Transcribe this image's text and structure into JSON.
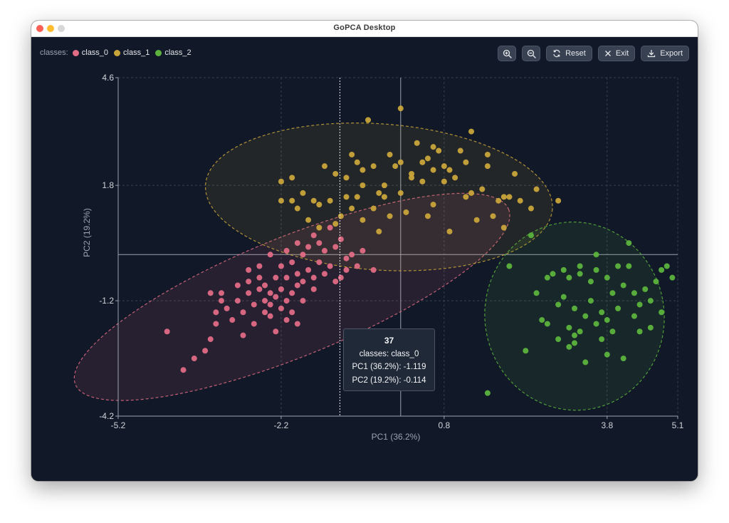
{
  "window": {
    "title": "GoPCA Desktop"
  },
  "legend": {
    "title": "classes:",
    "items": [
      {
        "label": "class_0",
        "color": "#e06c85"
      },
      {
        "label": "class_1",
        "color": "#c9a43a"
      },
      {
        "label": "class_2",
        "color": "#5bb33d"
      }
    ]
  },
  "toolbar": {
    "zoom_in_icon": "zoom-in-icon",
    "zoom_out_icon": "zoom-out-icon",
    "reset_label": "Reset",
    "exit_label": "Exit",
    "export_label": "Export"
  },
  "tooltip": {
    "title": "37",
    "line1": "classes: class_0",
    "line2": "PC1 (36.2%): -1.119",
    "line3": "PC2 (19.2%): -0.114"
  },
  "chart_data": {
    "type": "scatter",
    "xlabel": "PC1 (36.2%)",
    "ylabel": "PC2 (19.2%)",
    "xlim": [
      -5.2,
      5.1
    ],
    "ylim": [
      -4.2,
      4.6
    ],
    "xticks": [
      -5.2,
      -2.2,
      0.8,
      3.8,
      5.1
    ],
    "yticks": [
      -4.2,
      -1.2,
      1.8,
      4.6
    ],
    "grid": true,
    "crosshair": {
      "x": -1.119,
      "y": -0.114
    },
    "series": [
      {
        "name": "class_0",
        "color": "#e06c85",
        "confidence_ellipse": {
          "cx": -2.0,
          "cy": -1.1,
          "rx": 4.3,
          "ry": 1.55,
          "angle_deg": 22
        },
        "points": [
          [
            -4.3,
            -2.0
          ],
          [
            -3.8,
            -2.7
          ],
          [
            -3.6,
            -2.5
          ],
          [
            -3.5,
            -2.2
          ],
          [
            -3.4,
            -1.8
          ],
          [
            -3.4,
            -1.5
          ],
          [
            -3.3,
            -1.2
          ],
          [
            -3.3,
            -1.0
          ],
          [
            -3.2,
            -1.4
          ],
          [
            -3.1,
            -1.7
          ],
          [
            -3.0,
            -1.2
          ],
          [
            -3.0,
            -0.8
          ],
          [
            -2.9,
            -2.1
          ],
          [
            -2.9,
            -1.5
          ],
          [
            -2.8,
            -1.0
          ],
          [
            -2.8,
            -0.7
          ],
          [
            -2.7,
            -1.3
          ],
          [
            -2.7,
            -1.8
          ],
          [
            -2.6,
            -0.9
          ],
          [
            -2.6,
            -0.6
          ],
          [
            -2.5,
            -1.2
          ],
          [
            -2.5,
            -1.5
          ],
          [
            -2.5,
            -0.8
          ],
          [
            -2.4,
            -1.0
          ],
          [
            -2.4,
            -1.6
          ],
          [
            -2.4,
            -1.3
          ],
          [
            -2.3,
            -0.6
          ],
          [
            -2.3,
            -1.1
          ],
          [
            -2.3,
            -2.0
          ],
          [
            -2.2,
            -1.4
          ],
          [
            -2.2,
            -0.9
          ],
          [
            -2.2,
            -0.3
          ],
          [
            -2.1,
            -0.6
          ],
          [
            -2.1,
            -1.2
          ],
          [
            -2.1,
            -1.7
          ],
          [
            -2.0,
            -1.0
          ],
          [
            -2.0,
            -1.5
          ],
          [
            -2.0,
            -0.2
          ],
          [
            -1.9,
            -1.8
          ],
          [
            -1.9,
            -0.8
          ],
          [
            -1.9,
            -0.5
          ],
          [
            -1.8,
            0.0
          ],
          [
            -1.8,
            -1.2
          ],
          [
            -1.8,
            -0.7
          ],
          [
            -1.7,
            -0.4
          ],
          [
            -1.7,
            0.2
          ],
          [
            -1.6,
            -0.6
          ],
          [
            -1.6,
            -0.9
          ],
          [
            -1.5,
            0.3
          ],
          [
            -1.5,
            -0.2
          ],
          [
            -1.4,
            0.1
          ],
          [
            -1.4,
            -0.5
          ],
          [
            -1.3,
            -0.3
          ],
          [
            -1.2,
            0.2
          ],
          [
            -1.2,
            -0.7
          ],
          [
            -1.1,
            0.4
          ],
          [
            -1.0,
            -0.1
          ],
          [
            -1.0,
            -0.4
          ],
          [
            -0.9,
            0.0
          ],
          [
            -0.8,
            -0.3
          ],
          [
            -0.7,
            0.1
          ],
          [
            -0.5,
            -0.4
          ],
          [
            -1.6,
            0.5
          ],
          [
            -2.4,
            0.0
          ],
          [
            -2.6,
            -0.3
          ],
          [
            -2.8,
            -0.4
          ],
          [
            -1.3,
            0.7
          ],
          [
            -1.9,
            0.3
          ],
          [
            -3.5,
            -1.0
          ],
          [
            -4.0,
            -3.0
          ],
          [
            -2.1,
            0.1
          ],
          [
            -1.1,
            -0.6
          ]
        ]
      },
      {
        "name": "class_1",
        "color": "#c9a43a",
        "confidence_ellipse": {
          "cx": -0.4,
          "cy": 1.5,
          "rx": 3.2,
          "ry": 1.9,
          "angle_deg": -4
        },
        "points": [
          [
            -2.2,
            1.4
          ],
          [
            -2.2,
            1.9
          ],
          [
            -2.0,
            1.4
          ],
          [
            -2.0,
            2.0
          ],
          [
            -1.9,
            1.2
          ],
          [
            -1.8,
            1.6
          ],
          [
            -1.7,
            0.9
          ],
          [
            -1.6,
            1.4
          ],
          [
            -1.5,
            0.7
          ],
          [
            -1.5,
            1.3
          ],
          [
            -1.4,
            2.3
          ],
          [
            -1.3,
            1.4
          ],
          [
            -1.2,
            0.8
          ],
          [
            -1.1,
            1.0
          ],
          [
            -1.0,
            1.5
          ],
          [
            -1.0,
            2.0
          ],
          [
            -0.9,
            2.6
          ],
          [
            -0.9,
            1.2
          ],
          [
            -0.8,
            2.4
          ],
          [
            -0.8,
            1.5
          ],
          [
            -0.7,
            0.9
          ],
          [
            -0.7,
            2.2
          ],
          [
            -0.6,
            3.5
          ],
          [
            -0.5,
            1.2
          ],
          [
            -0.5,
            2.3
          ],
          [
            -0.4,
            0.6
          ],
          [
            -0.3,
            1.8
          ],
          [
            -0.2,
            2.6
          ],
          [
            -0.2,
            1.0
          ],
          [
            -0.1,
            2.3
          ],
          [
            0.0,
            1.6
          ],
          [
            0.0,
            2.4
          ],
          [
            0.1,
            1.1
          ],
          [
            0.2,
            2.1
          ],
          [
            0.3,
            2.9
          ],
          [
            0.4,
            1.9
          ],
          [
            0.5,
            2.5
          ],
          [
            0.6,
            2.2
          ],
          [
            0.6,
            1.3
          ],
          [
            0.7,
            2.7
          ],
          [
            0.8,
            1.9
          ],
          [
            0.8,
            2.3
          ],
          [
            0.9,
            0.6
          ],
          [
            1.0,
            2.0
          ],
          [
            1.1,
            2.7
          ],
          [
            1.2,
            1.5
          ],
          [
            1.3,
            3.2
          ],
          [
            1.4,
            0.9
          ],
          [
            1.5,
            1.7
          ],
          [
            1.6,
            2.3
          ],
          [
            1.7,
            1.0
          ],
          [
            1.8,
            1.4
          ],
          [
            1.9,
            0.7
          ],
          [
            2.0,
            1.5
          ],
          [
            2.1,
            2.1
          ],
          [
            2.2,
            1.4
          ],
          [
            2.4,
            1.2
          ],
          [
            2.5,
            1.7
          ],
          [
            1.2,
            2.4
          ],
          [
            0.5,
            1.0
          ],
          [
            -0.3,
            1.5
          ],
          [
            -1.2,
            2.1
          ],
          [
            0.0,
            3.8
          ],
          [
            1.6,
            2.6
          ],
          [
            0.4,
            2.4
          ],
          [
            0.2,
            2.0
          ],
          [
            -0.7,
            1.8
          ],
          [
            1.9,
            1.5
          ],
          [
            2.9,
            1.4
          ],
          [
            -0.4,
            1.6
          ],
          [
            0.9,
            2.2
          ],
          [
            1.3,
            1.6
          ],
          [
            0.6,
            2.8
          ]
        ]
      },
      {
        "name": "class_2",
        "color": "#5bb33d",
        "confidence_ellipse": {
          "cx": 3.2,
          "cy": -1.6,
          "rx": 1.65,
          "ry": 2.45,
          "angle_deg": 10
        },
        "points": [
          [
            1.6,
            -3.6
          ],
          [
            2.0,
            -0.3
          ],
          [
            2.3,
            -2.5
          ],
          [
            2.5,
            -1.0
          ],
          [
            2.7,
            -1.8
          ],
          [
            2.8,
            -0.5
          ],
          [
            2.9,
            -2.2
          ],
          [
            2.9,
            -1.3
          ],
          [
            3.0,
            -0.4
          ],
          [
            3.1,
            -2.4
          ],
          [
            3.1,
            -1.9
          ],
          [
            3.1,
            -0.6
          ],
          [
            3.2,
            -2.1
          ],
          [
            3.2,
            -1.4
          ],
          [
            3.3,
            -2.0
          ],
          [
            3.3,
            -0.3
          ],
          [
            3.4,
            -1.6
          ],
          [
            3.4,
            -2.8
          ],
          [
            3.5,
            -0.7
          ],
          [
            3.5,
            -1.2
          ],
          [
            3.6,
            -1.8
          ],
          [
            3.6,
            -0.4
          ],
          [
            3.7,
            -1.5
          ],
          [
            3.7,
            -2.2
          ],
          [
            3.8,
            -0.6
          ],
          [
            3.8,
            -1.7
          ],
          [
            3.9,
            -1.0
          ],
          [
            3.9,
            -2.0
          ],
          [
            4.0,
            -0.3
          ],
          [
            4.0,
            -1.4
          ],
          [
            4.1,
            -2.7
          ],
          [
            4.1,
            -0.8
          ],
          [
            4.2,
            0.3
          ],
          [
            4.3,
            -1.0
          ],
          [
            4.3,
            -1.6
          ],
          [
            4.4,
            -1.3
          ],
          [
            4.5,
            -0.9
          ],
          [
            4.6,
            -1.9
          ],
          [
            4.6,
            -1.2
          ],
          [
            4.7,
            -0.7
          ],
          [
            4.8,
            -0.4
          ],
          [
            4.8,
            -1.5
          ],
          [
            4.9,
            -0.3
          ],
          [
            5.0,
            -0.6
          ],
          [
            4.2,
            -0.3
          ],
          [
            3.6,
            0.0
          ],
          [
            3.2,
            -2.3
          ],
          [
            2.6,
            -1.7
          ],
          [
            3.8,
            -2.6
          ],
          [
            3.3,
            -0.5
          ],
          [
            3.0,
            -1.1
          ],
          [
            4.4,
            -2.0
          ],
          [
            2.4,
            0.5
          ],
          [
            2.7,
            -0.6
          ]
        ]
      }
    ]
  }
}
